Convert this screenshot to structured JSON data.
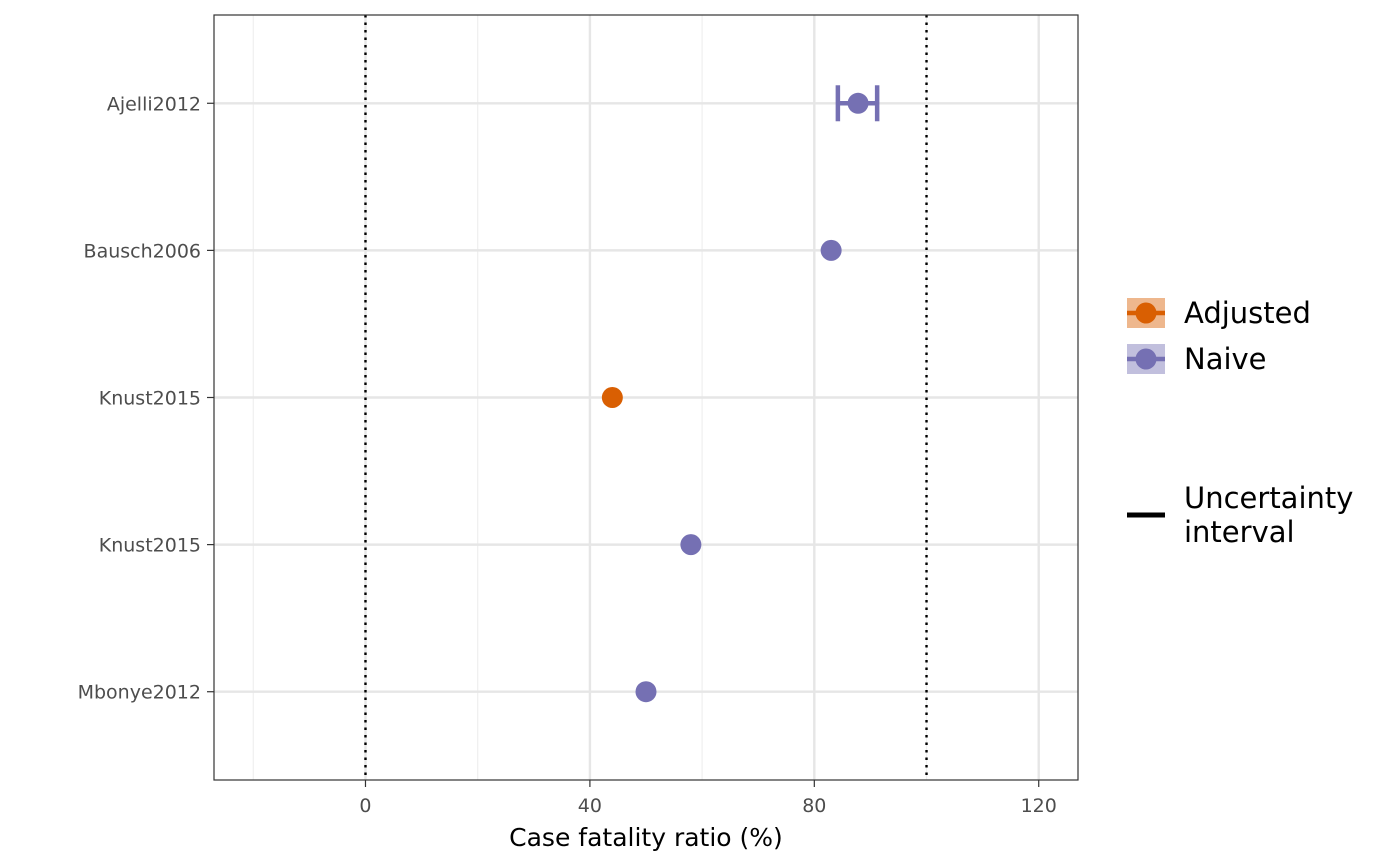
{
  "chart_data": {
    "type": "scatter",
    "orientation": "horizontal",
    "xlabel": "Case fatality ratio (%)",
    "ylabel": "",
    "xlim": [
      -27,
      127
    ],
    "x_ticks": [
      0,
      40,
      80,
      120
    ],
    "x_minor_ticks": [
      -20,
      20,
      60,
      100
    ],
    "reference_lines": [
      0,
      100
    ],
    "grid": true,
    "legend_position": "right",
    "categories": [
      "Ajelli2012",
      "Bausch2006",
      "Knust2015",
      "Knust2015",
      "Mbonye2012"
    ],
    "points": [
      {
        "label": "Ajelli2012",
        "value": 87.8,
        "lower": 84.2,
        "upper": 91.2,
        "group": "Naive"
      },
      {
        "label": "Bausch2006",
        "value": 83.0,
        "group": "Naive"
      },
      {
        "label": "Knust2015",
        "value": 44.0,
        "group": "Adjusted"
      },
      {
        "label": "Knust2015",
        "value": 58.0,
        "group": "Naive"
      },
      {
        "label": "Mbonye2012",
        "value": 50.0,
        "group": "Naive"
      }
    ],
    "series": [
      {
        "name": "Adjusted",
        "color": "#d95f02"
      },
      {
        "name": "Naive",
        "color": "#7570b3"
      }
    ],
    "legend_extra": {
      "lines": [
        "Uncertainty",
        "interval"
      ]
    }
  }
}
